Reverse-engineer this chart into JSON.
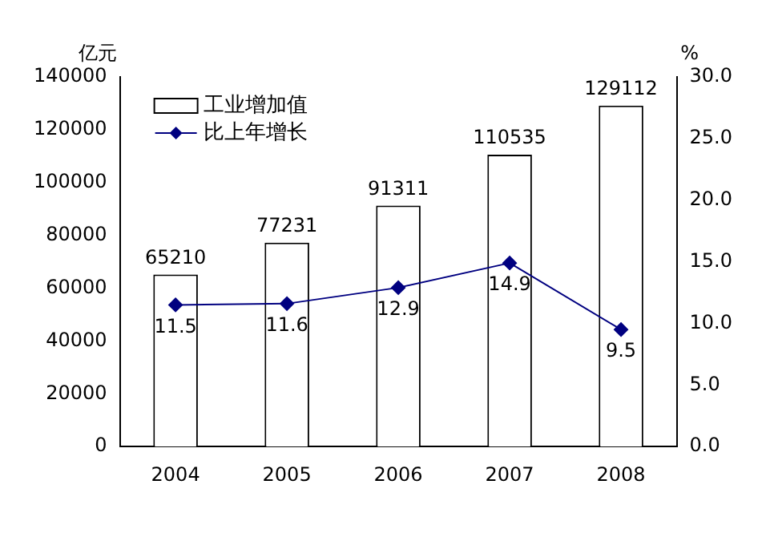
{
  "chart_data": {
    "type": "bar",
    "categories": [
      "2004",
      "2005",
      "2006",
      "2007",
      "2008"
    ],
    "series": [
      {
        "name": "工业增加值",
        "color": "#ffffff",
        "values": [
          65210,
          77231,
          91311,
          110535,
          129112
        ]
      },
      {
        "name": "比上年增长",
        "type": "line",
        "axis": "y2",
        "color": "#000080",
        "marker": "diamond",
        "values": [
          11.5,
          11.6,
          12.9,
          14.9,
          9.5
        ]
      }
    ],
    "ylabel": "亿元",
    "y2label": "%",
    "ylim": [
      0,
      140000
    ],
    "yticks": [
      0,
      20000,
      40000,
      60000,
      80000,
      100000,
      120000,
      140000
    ],
    "y2lim": [
      0,
      30
    ],
    "y2ticks": [
      {
        "value": 0,
        "label": "0.0"
      },
      {
        "value": 5,
        "label": "5.0"
      },
      {
        "value": 10,
        "label": "10.0"
      },
      {
        "value": 15,
        "label": "15.0"
      },
      {
        "value": 20,
        "label": "20.0"
      },
      {
        "value": 25,
        "label": "25.0"
      },
      {
        "value": 30,
        "label": "30.0"
      }
    ],
    "data_labels": true,
    "legend": "top left",
    "grid": false
  }
}
